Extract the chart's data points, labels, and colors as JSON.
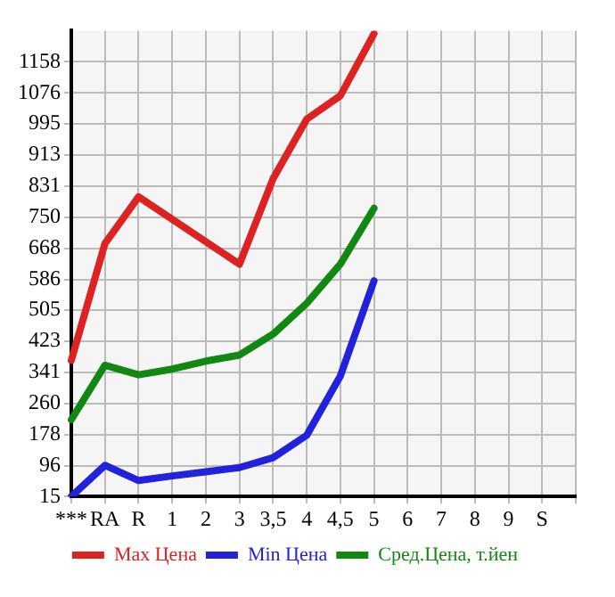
{
  "chart_data": {
    "type": "line",
    "categories": [
      "***",
      "RA",
      "R",
      "1",
      "2",
      "3",
      "3,5",
      "4",
      "4,5",
      "5",
      "6",
      "7",
      "8",
      "9",
      "S",
      null
    ],
    "series": [
      {
        "name": "Max Цена",
        "color": "#dd2222",
        "values": [
          373,
          680,
          803,
          null,
          null,
          626,
          851,
          1007,
          1069,
          1232,
          null,
          null,
          null,
          null,
          null,
          null
        ]
      },
      {
        "name": "Min Цена",
        "color": "#2222dd",
        "values": [
          15,
          97,
          57,
          69,
          80,
          91,
          117,
          176,
          332,
          582,
          null,
          null,
          null,
          null,
          null,
          null
        ]
      },
      {
        "name": "Сред.Цена, т.йен",
        "color": "#118811",
        "values": [
          217,
          360,
          335,
          350,
          371,
          387,
          442,
          523,
          626,
          773,
          null,
          null,
          null,
          null,
          null,
          null
        ]
      }
    ],
    "ylim": [
      15,
      1240
    ],
    "yticks": [
      15,
      96,
      178,
      260,
      341,
      423,
      505,
      586,
      668,
      750,
      831,
      913,
      995,
      1076,
      1158
    ],
    "grid": true,
    "legend": "bottom",
    "marker": "none",
    "line_style": "solid"
  }
}
